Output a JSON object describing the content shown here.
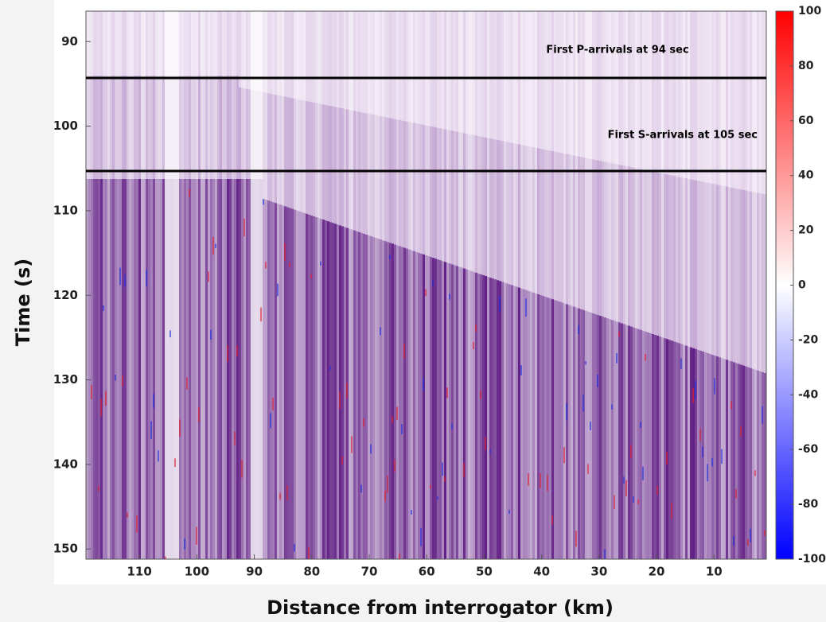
{
  "chart_data": {
    "type": "heatmap",
    "xlabel": "Distance from interrogator (km)",
    "ylabel": "Time (s)",
    "xlim": [
      119.3,
      0.9
    ],
    "ylim": [
      86.4,
      151.2
    ],
    "xticks": [
      110,
      100,
      90,
      80,
      70,
      60,
      50,
      40,
      30,
      20,
      10
    ],
    "yticks": [
      90,
      100,
      110,
      120,
      130,
      140,
      150
    ],
    "colorbar": {
      "clim": [
        -100,
        100
      ],
      "ticks": [
        100,
        80,
        60,
        40,
        20,
        0,
        -20,
        -40,
        -60,
        -80,
        -100
      ],
      "colors": [
        "#0000ff",
        "#ffffff",
        "#ff0000"
      ]
    },
    "annotations": [
      {
        "text": "First P-arrivals at 94 sec",
        "value": 94.3
      },
      {
        "text": "First S-arrivals at 105 sec",
        "value": 105.3
      }
    ]
  }
}
